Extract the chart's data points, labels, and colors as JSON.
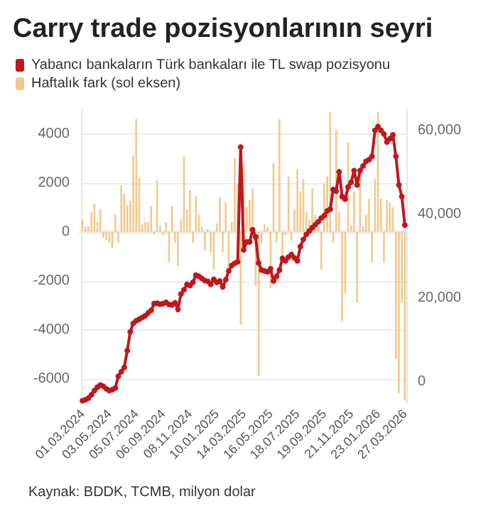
{
  "chart_data": {
    "type": "bar",
    "title": "Carry trade pozisyonlarının seyri",
    "categories": [
      "01.03.2024",
      null,
      null,
      null,
      null,
      null,
      null,
      null,
      null,
      "03.05.2024",
      null,
      null,
      null,
      null,
      null,
      null,
      null,
      null,
      "05.07.2024",
      null,
      null,
      null,
      null,
      null,
      null,
      null,
      null,
      "06.09.2024",
      null,
      null,
      null,
      null,
      null,
      null,
      null,
      null,
      "08.11.2024",
      null,
      null,
      null,
      null,
      null,
      null,
      null,
      null,
      "10.01.2025",
      null,
      null,
      null,
      null,
      null,
      null,
      null,
      null,
      "14.03.2025",
      null,
      null,
      null,
      null,
      null,
      null,
      null,
      null,
      "16.05.2025",
      null,
      null,
      null,
      null,
      null,
      null,
      null,
      null,
      "18.07.2025",
      null,
      null,
      null,
      null,
      null,
      null,
      null,
      null,
      "19.09.2025",
      null,
      null,
      null,
      null,
      null,
      null,
      null,
      null,
      "21.11.2025",
      null,
      null,
      null,
      null,
      null,
      null,
      null,
      null,
      "23.01.2026",
      null,
      null,
      null,
      null,
      null,
      null,
      null,
      null,
      "27.03.2026"
    ],
    "series": [
      {
        "name": "Haftalık fark (sol eksen)",
        "color": "#f3c88d",
        "values": [
          500,
          200,
          200,
          800,
          1150,
          400,
          900,
          -250,
          -350,
          -450,
          -650,
          700,
          -450,
          1900,
          1550,
          1100,
          1250,
          3100,
          4600,
          2200,
          300,
          400,
          400,
          1050,
          -100,
          2100,
          250,
          -150,
          400,
          -1250,
          1050,
          -450,
          -1400,
          500,
          3100,
          900,
          1700,
          -450,
          1450,
          700,
          200,
          -750,
          100,
          -850,
          -1550,
          350,
          1400,
          -850,
          1200,
          -1650,
          400,
          3000,
          1950,
          -3800,
          2800,
          1000,
          1300,
          1750,
          -2200,
          -5900,
          -450,
          300,
          200,
          -2300,
          2800,
          -450,
          4600,
          -1050,
          -150,
          2250,
          -350,
          900,
          2550,
          1650,
          2150,
          800,
          500,
          1800,
          700,
          200,
          -1550,
          1950,
          2250,
          4900,
          -450,
          4150,
          800,
          -3650,
          -2500,
          3650,
          250,
          1650,
          -2900,
          2550,
          200,
          700,
          1350,
          -1250,
          2150,
          4900,
          1350,
          -1250,
          1300,
          1200,
          1000,
          -5200,
          -6600,
          -2900,
          -6900
        ]
      },
      {
        "name": "Yabancı bankaların Türk bankaları ile TL swap pozisyonu",
        "type": "line",
        "axis": "y2",
        "color": "#c0161e",
        "values": [
          -4400,
          -4200,
          -3800,
          -3000,
          -2000,
          -1200,
          -700,
          -1000,
          -1600,
          -2000,
          -1800,
          -1400,
          1400,
          2500,
          3500,
          7500,
          12000,
          14000,
          14600,
          15000,
          15400,
          15800,
          16500,
          17100,
          18700,
          18800,
          18600,
          18700,
          19000,
          18500,
          18400,
          18900,
          17300,
          21000,
          22000,
          23300,
          23000,
          23800,
          25500,
          25200,
          24700,
          24200,
          24000,
          23300,
          24500,
          23800,
          24100,
          22700,
          24400,
          26500,
          27800,
          28300,
          28700,
          56000,
          31500,
          33400,
          33400,
          36300,
          34600,
          28400,
          26700,
          26500,
          26300,
          27000,
          24100,
          25200,
          26700,
          29500,
          28900,
          29800,
          30400,
          29600,
          28900,
          32300,
          34000,
          35200,
          36000,
          36800,
          37500,
          38200,
          39100,
          39700,
          40800,
          41200,
          45900,
          45500,
          50100,
          44200,
          43600,
          46500,
          47600,
          50400,
          47000,
          50400,
          51500,
          52600,
          53000,
          53800,
          60000,
          60900,
          60000,
          59100,
          57200,
          58000,
          58900,
          53800,
          47000,
          44200,
          37400
        ]
      }
    ],
    "ylim": [
      -7000,
      5000
    ],
    "yticks": [
      -6000,
      -4000,
      -2000,
      0,
      2000,
      4000
    ],
    "y2lim": [
      -5000,
      65000
    ],
    "y2ticks": [
      0,
      {
        "value": 20000,
        "label": "20,000"
      },
      {
        "value": 40000,
        "label": "40,000"
      },
      {
        "value": 60000,
        "label": "60,000"
      }
    ],
    "grid": "y",
    "legend": "top left",
    "marker": "circle",
    "line_style": "solid",
    "annotations": [
      "Kaynak: BDDK, TCMB, milyon dolar"
    ]
  }
}
